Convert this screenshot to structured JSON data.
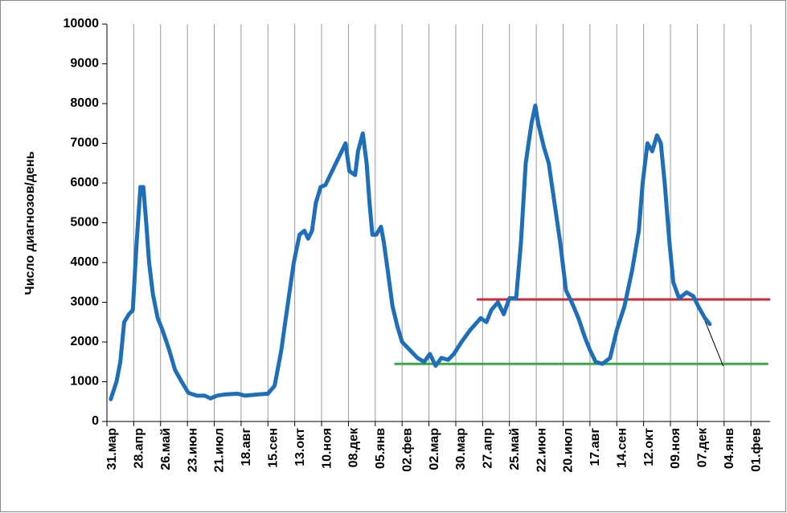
{
  "chart_data": {
    "type": "line",
    "y_label": "Число диагнозов/день",
    "xlim": [
      0,
      692
    ],
    "xticks": [
      {
        "value": 0,
        "label": "31.мар"
      },
      {
        "value": 28,
        "label": "28.апр"
      },
      {
        "value": 56,
        "label": "26.май"
      },
      {
        "value": 84,
        "label": "23.июн"
      },
      {
        "value": 112,
        "label": "21.июл"
      },
      {
        "value": 140,
        "label": "18.авг"
      },
      {
        "value": 168,
        "label": "15.сен"
      },
      {
        "value": 196,
        "label": "13.окт"
      },
      {
        "value": 224,
        "label": "10.ноя"
      },
      {
        "value": 252,
        "label": "08.дек"
      },
      {
        "value": 280,
        "label": "05.янв"
      },
      {
        "value": 308,
        "label": "02.фев"
      },
      {
        "value": 336,
        "label": "02.мар"
      },
      {
        "value": 364,
        "label": "30.мар"
      },
      {
        "value": 392,
        "label": "27.апр"
      },
      {
        "value": 420,
        "label": "25.май"
      },
      {
        "value": 448,
        "label": "22.июн"
      },
      {
        "value": 476,
        "label": "20.июл"
      },
      {
        "value": 504,
        "label": "17.авг"
      },
      {
        "value": 532,
        "label": "14.сен"
      },
      {
        "value": 560,
        "label": "12.окт"
      },
      {
        "value": 588,
        "label": "09.ноя"
      },
      {
        "value": 616,
        "label": "07.дек"
      },
      {
        "value": 644,
        "label": "04.янв"
      },
      {
        "value": 672,
        "label": "01.фев"
      }
    ],
    "ylim": [
      0,
      10000
    ],
    "yticks": [
      0,
      1000,
      2000,
      3000,
      4000,
      5000,
      6000,
      7000,
      8000,
      9000,
      10000
    ],
    "grid": "x",
    "series": [
      {
        "color": "#1f6fb8",
        "x": [
          4,
          10,
          14,
          18,
          23,
          27,
          31,
          35,
          38,
          41,
          44,
          48,
          53,
          58,
          65,
          71,
          78,
          85,
          94,
          102,
          108,
          115,
          123,
          136,
          144,
          157,
          168,
          175,
          182,
          189,
          195,
          201,
          206,
          210,
          214,
          218,
          223,
          228,
          233,
          239,
          245,
          249,
          253,
          259,
          262,
          267,
          271,
          274,
          277,
          281,
          286,
          289,
          293,
          298,
          303,
          308,
          316,
          324,
          331,
          337,
          343,
          349,
          356,
          362,
          370,
          379,
          390,
          396,
          401,
          408,
          414,
          420,
          427,
          432,
          437,
          443,
          447,
          450,
          456,
          461,
          467,
          473,
          479,
          485,
          492,
          499,
          504,
          510,
          517,
          525,
          532,
          540,
          548,
          555,
          559,
          564,
          569,
          574,
          578,
          582,
          587,
          591,
          597,
          605,
          612,
          617,
          624,
          629
        ],
        "values": [
          560,
          1000,
          1500,
          2500,
          2700,
          2800,
          4500,
          5900,
          5900,
          5000,
          4000,
          3200,
          2600,
          2300,
          1800,
          1300,
          1000,
          720,
          650,
          650,
          580,
          650,
          680,
          700,
          650,
          680,
          700,
          900,
          1800,
          3000,
          4000,
          4700,
          4800,
          4600,
          4800,
          5500,
          5900,
          5950,
          6200,
          6500,
          6800,
          7000,
          6300,
          6200,
          6800,
          7250,
          6500,
          5500,
          4700,
          4700,
          4900,
          4500,
          3800,
          2900,
          2400,
          2000,
          1800,
          1600,
          1500,
          1700,
          1400,
          1600,
          1550,
          1700,
          2000,
          2300,
          2600,
          2500,
          2800,
          3000,
          2700,
          3100,
          3100,
          4500,
          6500,
          7500,
          7950,
          7500,
          6900,
          6500,
          5500,
          4500,
          3300,
          3000,
          2600,
          2100,
          1800,
          1500,
          1450,
          1600,
          2300,
          2900,
          3800,
          4800,
          6000,
          7000,
          6800,
          7200,
          7000,
          6000,
          4500,
          3500,
          3100,
          3250,
          3150,
          2900,
          2600,
          2450
        ]
      }
    ],
    "reference_lines": [
      {
        "color": "#cc2a36",
        "x": [
          387,
          691
        ],
        "values": [
          3070,
          3070
        ]
      },
      {
        "color": "#3aa84a",
        "x": [
          301,
          689
        ],
        "values": [
          1450,
          1450
        ]
      },
      {
        "color": "#000000",
        "x": [
          617,
          643
        ],
        "values": [
          2950,
          1400
        ]
      }
    ]
  }
}
